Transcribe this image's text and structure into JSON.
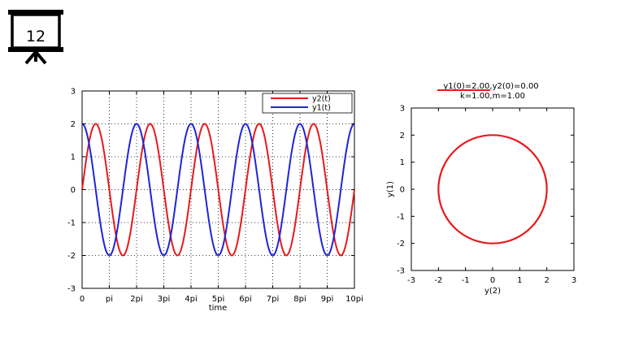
{
  "slide": {
    "number": "12",
    "icon": "presentation-board-icon"
  },
  "colors": {
    "red": "#e8191c",
    "blue": "#1f25d6"
  },
  "chart_data": [
    {
      "type": "line",
      "xlabel": "time",
      "ylabel": "",
      "xlim": [
        0,
        31.4159
      ],
      "ylim": [
        -3,
        3
      ],
      "x_ticks": [
        "0",
        "pi",
        "2pi",
        "3pi",
        "4pi",
        "5pi",
        "6pi",
        "7pi",
        "8pi",
        "9pi",
        "10pi"
      ],
      "y_ticks": [
        "3",
        "2",
        "1",
        "0",
        "-1",
        "-2",
        "-3"
      ],
      "grid": true,
      "legend_position": "top-right",
      "series": [
        {
          "name": "y2(t)",
          "color": "#e8191c",
          "function": "2*sin(t)",
          "amplitude": 2,
          "period": 6.2832
        },
        {
          "name": "y1(t)",
          "color": "#1f25d6",
          "function": "2*cos(t)",
          "amplitude": 2,
          "period": 6.2832
        }
      ]
    },
    {
      "type": "line",
      "title_line1": "y1(0)=2.00,y2(0)=0.00",
      "title_line2": "k=1.00,m=1.00",
      "xlabel": "y(2)",
      "ylabel": "y(1)",
      "xlim": [
        -3,
        3
      ],
      "ylim": [
        -3,
        3
      ],
      "x_ticks": [
        "-3",
        "-2",
        "-1",
        "0",
        "1",
        "2",
        "3"
      ],
      "y_ticks": [
        "3",
        "2",
        "1",
        "0",
        "-1",
        "-2",
        "-3"
      ],
      "grid": false,
      "series": [
        {
          "name": "",
          "color": "#e8191c",
          "shape": "circle",
          "center": [
            0,
            0
          ],
          "radius": 2
        }
      ]
    }
  ]
}
